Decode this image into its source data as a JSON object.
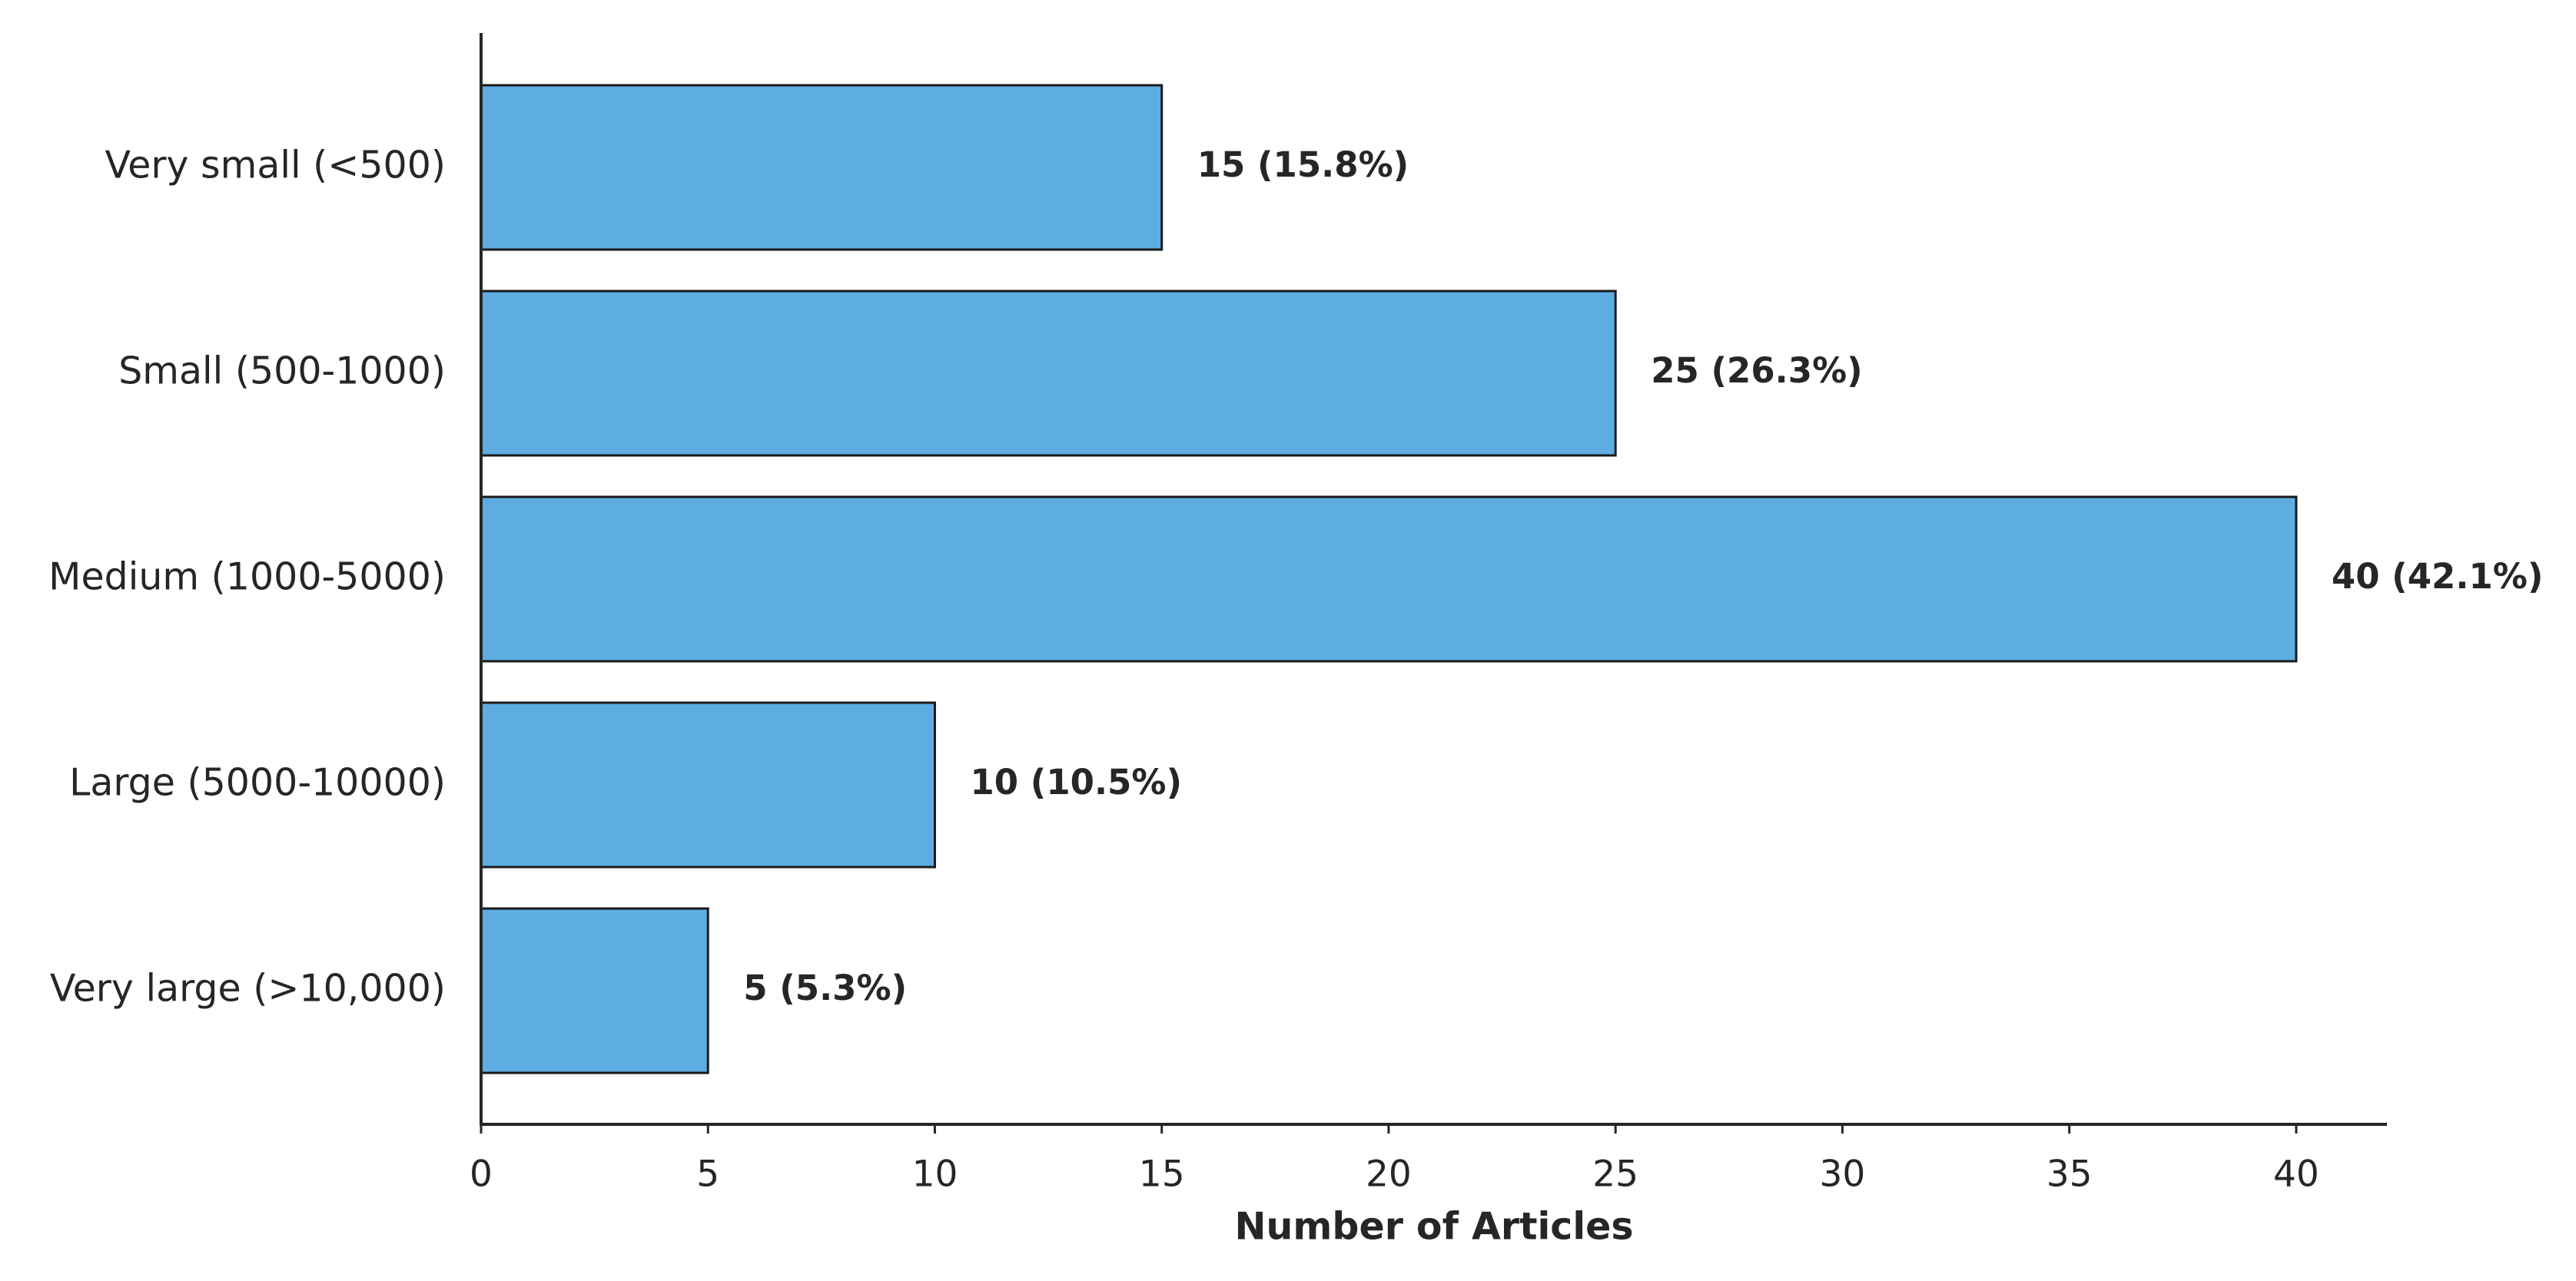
{
  "chart_data": {
    "type": "bar",
    "orientation": "horizontal",
    "categories": [
      "Very small (<500)",
      "Small (500-1000)",
      "Medium (1000-5000)",
      "Large (5000-10000)",
      "Very large (>10,000)"
    ],
    "values": [
      15,
      25,
      40,
      10,
      5
    ],
    "value_labels": [
      "15 (15.8%)",
      "25 (26.3%)",
      "40 (42.1%)",
      "10 (10.5%)",
      "5 (5.3%)"
    ],
    "color": "#5dade2",
    "edgecolor": "#1a1a1a",
    "xlabel": "Number of Articles",
    "xlim": [
      0,
      42
    ],
    "xticks": [
      0,
      5,
      10,
      15,
      20,
      25,
      30,
      35,
      40
    ],
    "grid": false
  }
}
